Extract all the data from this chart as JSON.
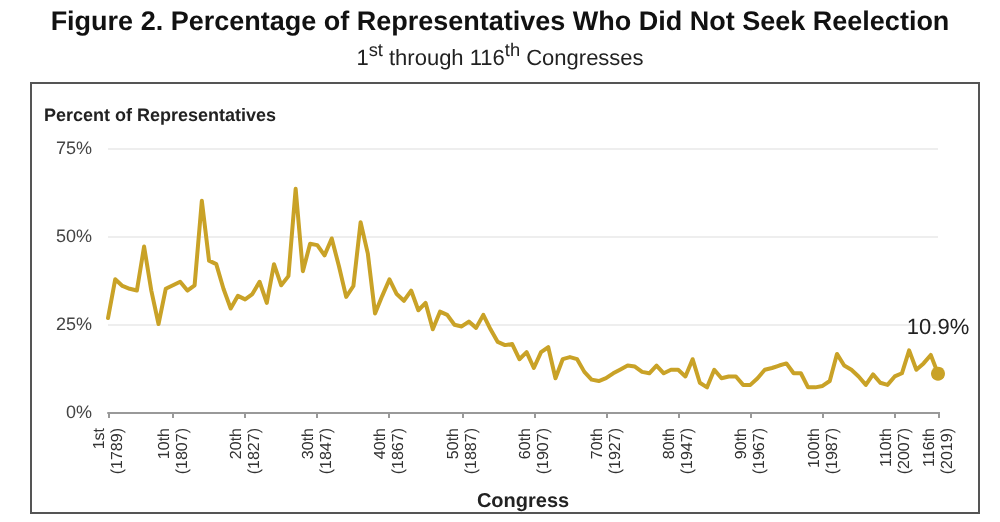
{
  "chart_data": {
    "type": "line",
    "title": "Figure 2. Percentage of Representatives Who Did Not Seek Reelection",
    "subtitle": "1$^{st}$ through 116$^{th}$ Congresses",
    "xlabel": "Congress",
    "ylabel": "Percent of Representatives",
    "categories": [
      "1st\n(1789)",
      null,
      null,
      null,
      null,
      null,
      null,
      null,
      null,
      "10th\n(1807)",
      null,
      null,
      null,
      null,
      null,
      null,
      null,
      null,
      null,
      "20th\n(1827)",
      null,
      null,
      null,
      null,
      null,
      null,
      null,
      null,
      null,
      "30th\n(1847)",
      null,
      null,
      null,
      null,
      null,
      null,
      null,
      null,
      null,
      "40th\n(1867)",
      null,
      null,
      null,
      null,
      null,
      null,
      null,
      null,
      null,
      "50th\n(1887)",
      null,
      null,
      null,
      null,
      null,
      null,
      null,
      null,
      null,
      "60th\n(1907)",
      null,
      null,
      null,
      null,
      null,
      null,
      null,
      null,
      null,
      "70th\n(1927)",
      null,
      null,
      null,
      null,
      null,
      null,
      null,
      null,
      null,
      "80th\n(1947)",
      null,
      null,
      null,
      null,
      null,
      null,
      null,
      null,
      null,
      "90th\n(1967)",
      null,
      null,
      null,
      null,
      null,
      null,
      null,
      null,
      null,
      "100th\n(1987)",
      null,
      null,
      null,
      null,
      null,
      null,
      null,
      null,
      null,
      "110th\n(2007)",
      null,
      null,
      null,
      null,
      null,
      "116th\n(2019)"
    ],
    "series": [
      {
        "color": "#c9a227",
        "values": [
          26.7,
          37.7,
          35.8,
          35,
          34.5,
          47,
          34.5,
          25,
          35,
          36,
          37,
          34.5,
          36,
          60,
          43,
          42,
          35,
          29.4,
          33,
          32,
          33.5,
          37,
          31,
          42,
          36,
          38.6,
          63.4,
          40,
          47.8,
          47.4,
          44.5,
          49.3,
          41.4,
          32.7,
          35.8,
          53.9,
          45,
          28,
          33,
          37.7,
          33.5,
          31.6,
          34.5,
          28.9,
          31,
          23.5,
          28.5,
          27.6,
          24.8,
          24.3,
          25.7,
          23.9,
          27.6,
          23.5,
          19.9,
          19,
          19.3,
          15,
          17,
          12.5,
          17,
          18.4,
          9.6,
          15,
          15.6,
          15,
          11.4,
          9.2,
          8.8,
          9.6,
          11,
          12.1,
          13.2,
          12.9,
          11.4,
          11,
          13.2,
          11,
          12,
          12,
          10.1,
          15,
          8.3,
          7,
          12,
          9.6,
          10.1,
          10.1,
          7.7,
          7.7,
          9.6,
          12,
          12.5,
          13.2,
          13.8,
          11,
          11,
          7,
          7,
          7.4,
          8.8,
          16.5,
          13.2,
          12,
          10.1,
          7.7,
          10.7,
          8.3,
          7.7,
          10.1,
          11,
          17.5,
          12,
          13.8,
          16.2,
          10.9
        ],
        "value_labels": [
          null,
          null,
          null,
          null,
          null,
          null,
          null,
          null,
          null,
          null,
          null,
          null,
          null,
          null,
          null,
          null,
          null,
          null,
          null,
          null,
          null,
          null,
          null,
          null,
          null,
          null,
          null,
          null,
          null,
          null,
          null,
          null,
          null,
          null,
          null,
          null,
          null,
          null,
          null,
          null,
          null,
          null,
          null,
          null,
          null,
          null,
          null,
          null,
          null,
          null,
          null,
          null,
          null,
          null,
          null,
          null,
          null,
          null,
          null,
          null,
          null,
          null,
          null,
          null,
          null,
          null,
          null,
          null,
          null,
          null,
          null,
          null,
          null,
          null,
          null,
          null,
          null,
          null,
          null,
          null,
          null,
          null,
          null,
          null,
          null,
          null,
          null,
          null,
          null,
          null,
          null,
          null,
          null,
          null,
          null,
          null,
          null,
          null,
          null,
          null,
          null,
          null,
          null,
          null,
          null,
          null,
          null,
          null,
          null,
          null,
          null,
          null,
          null,
          null,
          null,
          "10.9%"
        ]
      }
    ],
    "ylim": [
      0,
      75
    ],
    "yticks": [
      {
        "value": 0,
        "label": "0%"
      },
      {
        "value": 25,
        "label": "25%"
      },
      {
        "value": 50,
        "label": "50%"
      },
      {
        "value": 75,
        "label": "75%"
      }
    ],
    "grid": "y",
    "marker": "none",
    "line_style": "solid"
  }
}
